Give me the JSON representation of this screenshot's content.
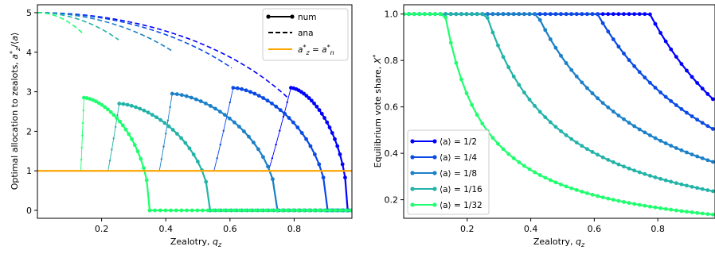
{
  "chart_data": [
    {
      "type": "line",
      "xlabel": "Zealotry, q_z",
      "ylabel": "Optimal allocation to zealots, a_z*/⟨a⟩",
      "xlim": [
        0,
        0.98
      ],
      "ylim": [
        -0.2,
        5.2
      ],
      "xticks": [
        "0.2",
        "0.4",
        "0.6",
        "0.8"
      ],
      "yticks": [
        "0",
        "1",
        "2",
        "3",
        "4",
        "5"
      ],
      "grid": false,
      "legend_position": "top-right",
      "legend": [
        {
          "label": "num",
          "style": "solid-with-dots",
          "color": "#000000"
        },
        {
          "label": "ana",
          "style": "dashed",
          "color": "#000000"
        },
        {
          "label": "a_z* = a_n*",
          "style": "solid",
          "color": "#FFA500"
        }
      ],
      "reference_line": {
        "y": 1,
        "color": "#FFA500"
      },
      "series": [
        {
          "avg_a": 0.5,
          "color": "#0000ff",
          "q_cross": 0.93,
          "q_switch": 0.72,
          "peak": [
            0.79,
            3.1
          ]
        },
        {
          "avg_a": 0.25,
          "color": "#0a4ae5",
          "q_cross": 0.855,
          "q_switch": 0.55,
          "peak": [
            0.61,
            3.1
          ]
        },
        {
          "avg_a": 0.125,
          "color": "#1a80c8",
          "q_cross": 0.695,
          "q_switch": 0.38,
          "peak": [
            0.42,
            2.95
          ]
        },
        {
          "avg_a": 0.0625,
          "color": "#22b3a8",
          "q_cross": 0.49,
          "q_switch": 0.22,
          "peak": [
            0.255,
            2.7
          ]
        },
        {
          "avg_a": 0.03125,
          "color": "#1eff6e",
          "q_cross": 0.31,
          "q_switch": 0.135,
          "peak": [
            0.145,
            2.85
          ]
        }
      ]
    },
    {
      "type": "line",
      "xlabel": "Zealotry, q_z",
      "ylabel": "Equilibrium vote share, X*",
      "xlim": [
        0,
        0.98
      ],
      "ylim": [
        0.12,
        1.04
      ],
      "xticks": [
        "0.2",
        "0.4",
        "0.6",
        "0.8"
      ],
      "yticks": [
        "0.2",
        "0.4",
        "0.6",
        "0.8",
        "1.0"
      ],
      "grid": false,
      "legend_position": "bottom-left",
      "series": [
        {
          "name": "⟨a⟩ = 1/2",
          "color": "#0000ff",
          "q_knee": 0.775,
          "end_value": 0.625
        },
        {
          "name": "⟨a⟩ = 1/4",
          "color": "#0a4ae5",
          "q_knee": 0.61,
          "end_value": 0.5
        },
        {
          "name": "⟨a⟩ = 1/8",
          "color": "#1a80c8",
          "q_knee": 0.42,
          "end_value": 0.36
        },
        {
          "name": "⟨a⟩ = 1/16",
          "color": "#22b3a8",
          "q_knee": 0.26,
          "end_value": 0.235
        },
        {
          "name": "⟨a⟩ = 1/32",
          "color": "#1eff6e",
          "q_knee": 0.13,
          "end_value": 0.135
        }
      ]
    }
  ]
}
